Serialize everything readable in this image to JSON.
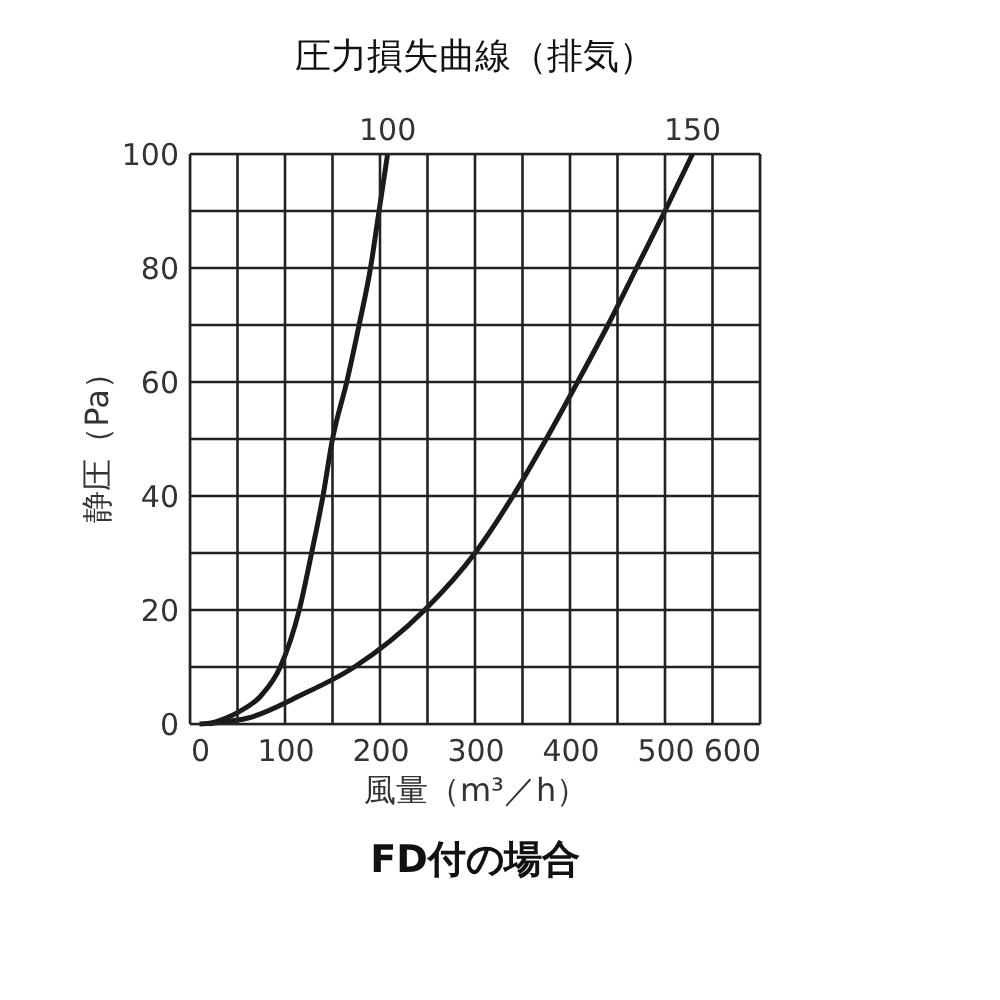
{
  "chart_data": {
    "type": "line",
    "title": "圧力損失曲線（排気）",
    "xlabel": "風量（m³／h）",
    "ylabel": "静圧（Pa）",
    "annotations": [
      "FD付の場合"
    ],
    "series": [
      {
        "name": "100",
        "color": "#1a1a1a",
        "x": [
          20,
          50,
          75,
          95,
          115,
          128,
          140,
          150,
          165,
          178,
          190,
          199,
          208
        ],
        "values": [
          0,
          2,
          5,
          10,
          20,
          30,
          40,
          50,
          60,
          70,
          80,
          90,
          100
        ]
      },
      {
        "name": "150",
        "color": "#1a1a1a",
        "x": [
          10,
          60,
          116,
          173,
          247,
          300,
          340,
          375,
          408,
          440,
          470,
          500,
          529
        ],
        "values": [
          0,
          1,
          5,
          10,
          20,
          30,
          40,
          50,
          60,
          70,
          80,
          90,
          100
        ]
      }
    ],
    "xlim": [
      0,
      600
    ],
    "ylim": [
      0,
      100
    ],
    "xticks": [
      0,
      {
        "value": 50,
        "label": null
      },
      100,
      {
        "value": 150,
        "label": null
      },
      200,
      {
        "value": 250,
        "label": null
      },
      300,
      {
        "value": 350,
        "label": null
      },
      400,
      {
        "value": 450,
        "label": null
      },
      500,
      {
        "value": 550,
        "label": null
      },
      600
    ],
    "yticks": [
      0,
      {
        "value": 10,
        "label": null
      },
      20,
      {
        "value": 30,
        "label": null
      },
      40,
      {
        "value": 50,
        "label": null
      },
      60,
      {
        "value": 70,
        "label": null
      },
      80,
      {
        "value": 90,
        "label": null
      },
      100
    ],
    "grid": true,
    "legend": false,
    "marker": "none",
    "line_style": "solid"
  }
}
